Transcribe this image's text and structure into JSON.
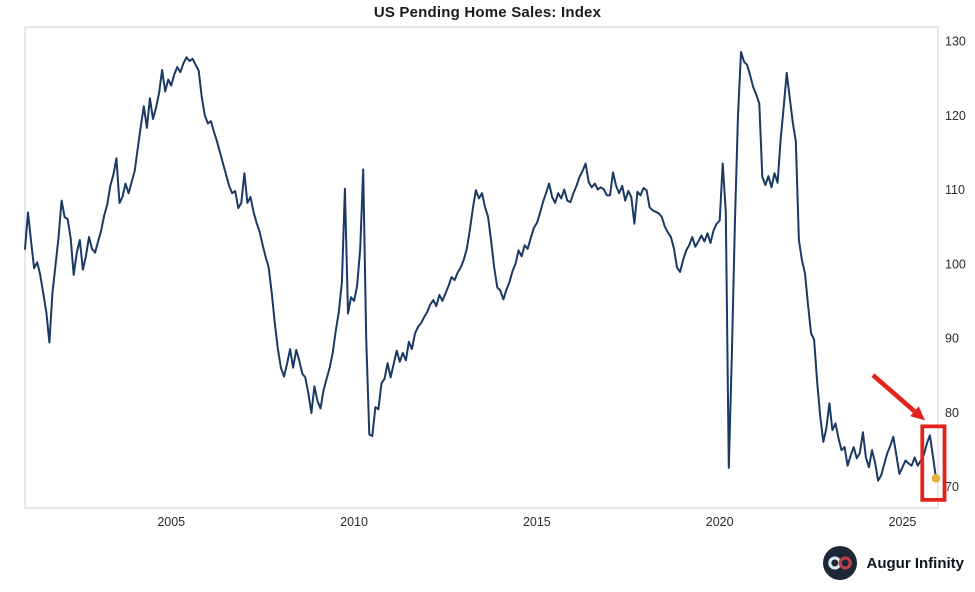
{
  "footer": {
    "brand": "Augur Infinity",
    "logo_bg": "#1b2838",
    "logo_left_loop": "#dce9f2",
    "logo_right_loop": "#c63b47"
  },
  "chart_data": {
    "type": "line",
    "title": "US Pending Home Sales: Index",
    "xlabel": "",
    "ylabel": "",
    "legend": "none",
    "grid": false,
    "frequency": "monthly",
    "start_year": 2001,
    "xticks": [
      2005,
      2010,
      2015,
      2020,
      2025
    ],
    "yticks": [
      70,
      80,
      90,
      100,
      110,
      120,
      130
    ],
    "ylim": [
      67,
      132
    ],
    "line_color": "#1a3a64",
    "axis_text_color": "#2b2b2b",
    "frame_color": "#d9d9d9",
    "values": [
      102.0,
      106.9,
      103.0,
      99.4,
      100.2,
      98.5,
      96.0,
      93.5,
      89.4,
      96.0,
      99.8,
      103.5,
      108.5,
      106.3,
      106.0,
      103.4,
      98.5,
      101.5,
      103.2,
      99.2,
      101.0,
      103.6,
      102.0,
      101.5,
      103.0,
      104.5,
      106.5,
      108.0,
      110.5,
      112.0,
      114.2,
      108.2,
      109.0,
      110.8,
      109.5,
      111.0,
      112.5,
      115.5,
      118.5,
      121.2,
      118.3,
      122.3,
      119.5,
      121.0,
      123.0,
      126.1,
      123.2,
      124.8,
      124.0,
      125.5,
      126.5,
      125.8,
      127.0,
      127.8,
      127.3,
      127.6,
      126.8,
      126.0,
      122.5,
      120.0,
      118.9,
      119.2,
      117.8,
      116.5,
      115.0,
      113.5,
      112.0,
      110.5,
      109.5,
      109.8,
      107.5,
      108.2,
      112.2,
      108.2,
      109.0,
      107.0,
      105.5,
      104.3,
      102.5,
      100.9,
      99.5,
      96.0,
      92.0,
      88.5,
      86.0,
      84.8,
      86.5,
      88.5,
      86.0,
      88.4,
      87.0,
      85.2,
      84.7,
      82.5,
      79.9,
      83.5,
      81.5,
      80.5,
      83.0,
      84.5,
      86.0,
      88.0,
      91.0,
      93.5,
      97.5,
      110.1,
      93.3,
      95.5,
      95.0,
      97.0,
      102.0,
      112.7,
      90.0,
      77.0,
      76.8,
      80.7,
      80.4,
      83.9,
      84.5,
      86.6,
      84.7,
      86.5,
      88.3,
      86.8,
      88.0,
      87.0,
      89.5,
      88.5,
      90.6,
      91.5,
      92.0,
      92.8,
      93.5,
      94.5,
      95.1,
      94.3,
      95.8,
      95.0,
      96.0,
      97.0,
      98.2,
      97.8,
      98.8,
      99.5,
      100.5,
      102.0,
      104.5,
      107.5,
      109.9,
      108.8,
      109.5,
      107.6,
      106.3,
      103.0,
      99.5,
      96.8,
      96.4,
      95.2,
      96.5,
      97.5,
      99.0,
      100.0,
      101.8,
      101.0,
      102.5,
      102.0,
      103.5,
      104.8,
      105.5,
      106.8,
      108.3,
      109.5,
      110.8,
      109.0,
      108.2,
      109.5,
      108.8,
      110.0,
      108.5,
      108.3,
      109.5,
      110.5,
      111.7,
      112.5,
      113.5,
      111.0,
      110.3,
      110.8,
      110.0,
      110.3,
      110.0,
      109.2,
      109.2,
      112.3,
      110.5,
      109.5,
      110.5,
      108.5,
      109.8,
      109.0,
      105.4,
      109.7,
      109.2,
      110.2,
      109.9,
      107.6,
      107.2,
      107.0,
      106.8,
      106.3,
      105.0,
      104.2,
      103.6,
      102.0,
      99.5,
      98.9,
      100.5,
      101.8,
      102.5,
      103.6,
      102.3,
      103.0,
      103.8,
      103.0,
      104.1,
      102.8,
      104.5,
      105.4,
      105.8,
      113.5,
      107.0,
      72.5,
      88.0,
      105.5,
      120.0,
      128.5,
      127.2,
      126.8,
      125.4,
      123.8,
      122.8,
      121.6,
      111.7,
      110.6,
      111.8,
      110.3,
      112.2,
      110.9,
      116.7,
      121.1,
      125.7,
      122.3,
      119.0,
      116.5,
      103.2,
      100.5,
      98.7,
      94.5,
      90.6,
      89.8,
      84.0,
      79.5,
      76.0,
      77.8,
      81.2,
      77.6,
      78.5,
      76.5,
      74.9,
      75.3,
      72.8,
      74.2,
      75.3,
      73.8,
      74.5,
      77.3,
      73.9,
      72.6,
      74.9,
      73.2,
      70.8,
      71.5,
      73.0,
      74.5,
      75.5,
      76.7,
      74.2,
      71.7,
      72.6,
      73.5,
      73.1,
      72.8,
      73.9,
      72.8,
      73.5,
      74.2,
      75.8,
      76.9,
      74.0,
      71.1
    ],
    "annotations": {
      "arrow": {
        "from_idx": 278.3,
        "from_val": 85.0,
        "to_idx": 295.4,
        "to_val": 78.9,
        "color": "#e2231a"
      },
      "box": {
        "idx1": 294.5,
        "idx2": 301.8,
        "val_low": 68.2,
        "val_high": 78.1,
        "color": "#e2231a"
      },
      "last_point_dot": {
        "idx": 299,
        "val": 71.1,
        "color": "#e9ae3c"
      }
    }
  }
}
